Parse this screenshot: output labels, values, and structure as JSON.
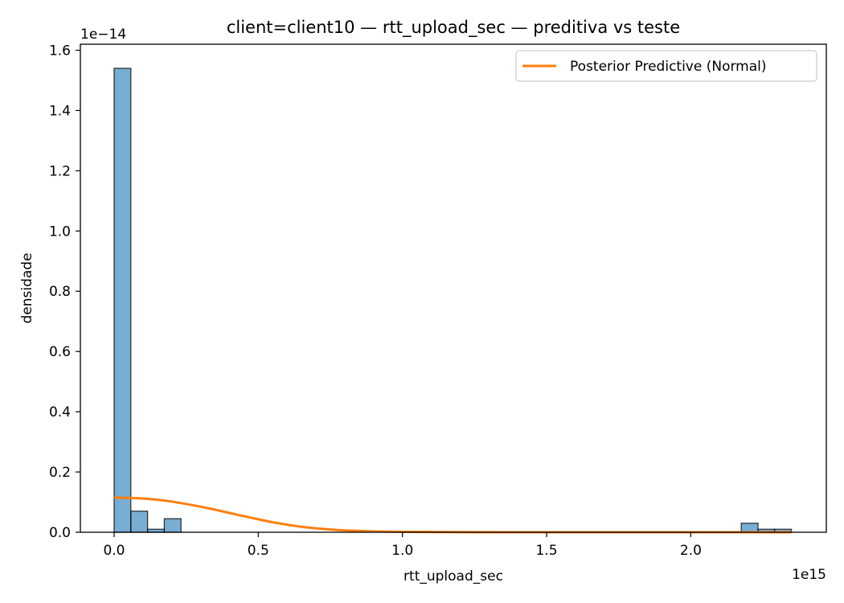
{
  "chart_data": {
    "type": "histogram",
    "title": "client=client10 — rtt_upload_sec — preditiva vs teste",
    "xlabel": "rtt_upload_sec",
    "ylabel": "densidade",
    "x_offset_label": "1e15",
    "y_offset_label": "1e−14",
    "xlim": [
      -0.117,
      2.47
    ],
    "ylim": [
      0,
      1.62
    ],
    "x_ticks": [
      0.0,
      0.5,
      1.0,
      1.5,
      2.0
    ],
    "x_tick_labels": [
      "0.0",
      "0.5",
      "1.0",
      "1.5",
      "2.0"
    ],
    "y_ticks": [
      0.0,
      0.2,
      0.4,
      0.6,
      0.8,
      1.0,
      1.2,
      1.4,
      1.6
    ],
    "y_tick_labels": [
      "0.0",
      "0.2",
      "0.4",
      "0.6",
      "0.8",
      "1.0",
      "1.2",
      "1.4",
      "1.6"
    ],
    "histogram": {
      "bin_edges": [
        0.0,
        0.058,
        0.116,
        0.174,
        0.232,
        2.175,
        2.233,
        2.291,
        2.349
      ],
      "densities": [
        1.54,
        0.07,
        0.01,
        0.045,
        0.0,
        0.03,
        0.01,
        0.01
      ],
      "color": "#1f77b4"
    },
    "series": [
      {
        "name": "Posterior Predictive (Normal)",
        "type": "line",
        "color": "#ff7f0e",
        "x": [
          0.0,
          0.05,
          0.1,
          0.15,
          0.2,
          0.25,
          0.3,
          0.35,
          0.4,
          0.45,
          0.5,
          0.55,
          0.6,
          0.65,
          0.7,
          0.75,
          0.8,
          0.9,
          1.0,
          1.2,
          1.5,
          2.0,
          2.349
        ],
        "y": [
          0.115,
          0.114,
          0.112,
          0.108,
          0.102,
          0.094,
          0.085,
          0.075,
          0.064,
          0.053,
          0.043,
          0.033,
          0.025,
          0.018,
          0.013,
          0.009,
          0.006,
          0.003,
          0.0013,
          0.0002,
          0.0,
          0.0,
          0.0
        ]
      }
    ],
    "legend": {
      "position": "top-right",
      "entries": [
        "Posterior Predictive (Normal)"
      ]
    },
    "grid": false
  }
}
